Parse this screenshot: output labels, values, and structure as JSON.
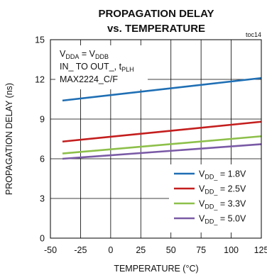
{
  "chart_data": {
    "type": "line",
    "title_line1": "PROPAGATION DELAY",
    "title_line2": "vs. TEMPERATURE",
    "tag": "toc14",
    "xlabel": "TEMPERATURE (°C)",
    "ylabel": "PROPAGATION DELAY (ns)",
    "xlim": [
      -50,
      125
    ],
    "ylim": [
      0,
      15
    ],
    "x_ticks": [
      -50,
      -25,
      0,
      25,
      50,
      75,
      100,
      125
    ],
    "y_ticks": [
      0,
      3,
      6,
      9,
      12,
      15
    ],
    "grid": true,
    "annotation": {
      "line1_main": "V",
      "line1_sub1": "DDA",
      "line1_mid": " = V",
      "line1_sub2": "DDB",
      "line2_main": "IN_ TO OUT_, t",
      "line2_sub": "PLH",
      "line3": "MAX2224_C/F"
    },
    "legend_position": "bottom-right",
    "series": [
      {
        "name": "1.8V",
        "label_prefix": "V",
        "label_sub": "DD_",
        "label_suffix": " = 1.8V",
        "color": "#1f6fb4",
        "x": [
          -40,
          125
        ],
        "y": [
          10.4,
          12.1
        ]
      },
      {
        "name": "2.5V",
        "label_prefix": "V",
        "label_sub": "DD_",
        "label_suffix": " = 2.5V",
        "color": "#c41e1e",
        "x": [
          -40,
          125
        ],
        "y": [
          7.3,
          8.8
        ]
      },
      {
        "name": "3.3V",
        "label_prefix": "V",
        "label_sub": "DD_",
        "label_suffix": " = 3.3V",
        "color": "#8dc04a",
        "x": [
          -40,
          125
        ],
        "y": [
          6.4,
          7.7
        ]
      },
      {
        "name": "5.0V",
        "label_prefix": "V",
        "label_sub": "DD_",
        "label_suffix": " = 5.0V",
        "color": "#7a5aa6",
        "x": [
          -40,
          125
        ],
        "y": [
          6.0,
          7.1
        ]
      }
    ]
  }
}
